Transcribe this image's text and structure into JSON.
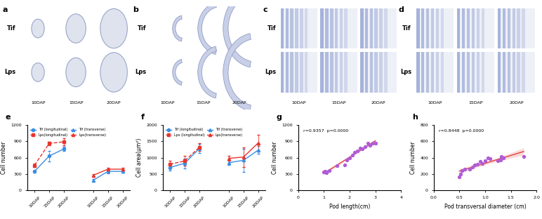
{
  "image_panels": [
    {
      "panel": "a",
      "rows": [
        "Tif",
        "Lps"
      ],
      "columns": [
        "10DAP",
        "15DAP",
        "20DAP"
      ]
    },
    {
      "panel": "b",
      "rows": [
        "Tif",
        "Lps"
      ],
      "columns": [
        "10DAP",
        "15DAP",
        "20DAP"
      ]
    },
    {
      "panel": "c",
      "rows": [
        "Tif",
        "Lps"
      ],
      "columns": [
        "10DAP",
        "15DAP",
        "20DAP"
      ]
    },
    {
      "panel": "d",
      "rows": [
        "Tif",
        "Lps"
      ],
      "columns": [
        "10DAP",
        "15DAP",
        "20DAP"
      ]
    }
  ],
  "chart_data": [
    {
      "panel": "e",
      "type": "line",
      "y_label": "Cell number",
      "categories": [
        "10DAP",
        "15DAP",
        "20DAP",
        null,
        "10DAP",
        "15DAP",
        "20DAP"
      ],
      "ylim": [
        0,
        1200
      ],
      "yticks": [
        0,
        300,
        600,
        900,
        1200
      ],
      "legend": "upper left",
      "series": [
        {
          "name": "Tif (longitudinal)",
          "color": "#3a8ee6",
          "marker": "circle",
          "line_style": "solid",
          "values": [
            350,
            630,
            760,
            null,
            null,
            null,
            null
          ],
          "errors": [
            20,
            100,
            40,
            null,
            null,
            null,
            null
          ]
        },
        {
          "name": "Lps(longitudinal)",
          "color": "#e8352e",
          "marker": "square",
          "line_style": "dashed",
          "values": [
            460,
            860,
            890,
            null,
            null,
            null,
            null
          ],
          "errors": [
            30,
            30,
            60,
            null,
            null,
            null,
            null
          ]
        },
        {
          "name": "Tif (transverse)",
          "color": "#3a8ee6",
          "marker": "triangle",
          "line_style": "solid",
          "values": [
            null,
            null,
            null,
            null,
            190,
            350,
            350
          ],
          "errors": [
            null,
            null,
            null,
            null,
            20,
            40,
            30
          ]
        },
        {
          "name": "Lps(transverse)",
          "color": "#e8352e",
          "marker": "triangle",
          "line_style": "solid",
          "values": [
            null,
            null,
            null,
            null,
            280,
            390,
            390
          ],
          "errors": [
            null,
            null,
            null,
            null,
            20,
            30,
            30
          ]
        }
      ]
    },
    {
      "panel": "f",
      "type": "line",
      "y_label": "Cell area(μm²)",
      "categories": [
        "10DAP",
        "15DAP",
        "20DAP",
        null,
        "10DAP",
        "15DAP",
        "20DAP"
      ],
      "ylim": [
        0,
        2000
      ],
      "yticks": [
        0,
        500,
        1000,
        1500,
        2000
      ],
      "legend": "upper left",
      "series": [
        {
          "name": "Tif (longitudinal)",
          "color": "#3a8ee6",
          "marker": "circle",
          "line_style": "solid",
          "values": [
            700,
            830,
            1280,
            null,
            null,
            null,
            null
          ],
          "errors": [
            100,
            150,
            130,
            null,
            null,
            null,
            null
          ]
        },
        {
          "name": "Lps (longitudinal)",
          "color": "#e8352e",
          "marker": "square",
          "line_style": "dashed",
          "values": [
            800,
            900,
            1320,
            null,
            null,
            null,
            null
          ],
          "errors": [
            100,
            150,
            120,
            null,
            null,
            null,
            null
          ]
        },
        {
          "name": "Tif (transverse)",
          "color": "#3a8ee6",
          "marker": "triangle",
          "line_style": "solid",
          "values": [
            null,
            null,
            null,
            null,
            850,
            920,
            1230
          ],
          "errors": [
            null,
            null,
            null,
            null,
            80,
            350,
            120
          ]
        },
        {
          "name": "Lps(transverse)",
          "color": "#e8352e",
          "marker": "triangle",
          "line_style": "solid",
          "values": [
            null,
            null,
            null,
            null,
            980,
            1020,
            1450
          ],
          "errors": [
            null,
            null,
            null,
            null,
            80,
            300,
            250
          ]
        }
      ]
    },
    {
      "panel": "g",
      "type": "scatter",
      "x_label": "Pod length(cm)",
      "y_label": "Cell number",
      "annotation": "r=0.9357  p=0.0000",
      "color": "#b05cd6",
      "xlim": [
        0,
        4
      ],
      "xticks": [
        0,
        1,
        2,
        3,
        4
      ],
      "ylim": [
        0,
        1200
      ],
      "yticks": [
        0,
        300,
        600,
        900,
        1200
      ],
      "x": [
        1.0,
        1.05,
        1.1,
        1.2,
        1.5,
        1.8,
        1.9,
        2.0,
        2.1,
        2.2,
        2.3,
        2.4,
        2.5,
        2.6,
        2.7,
        2.8,
        2.9,
        3.0
      ],
      "values": [
        340,
        350,
        330,
        360,
        450,
        470,
        560,
        600,
        650,
        700,
        720,
        780,
        760,
        800,
        860,
        830,
        870,
        860
      ]
    },
    {
      "panel": "h",
      "type": "scatter",
      "x_label": "Pod transversal diameter (cm)",
      "y_label": "Cell number",
      "annotation": "r=0.8448  p=0.0000",
      "color": "#b05cd6",
      "xlim": [
        0,
        2.0
      ],
      "xticks": [
        {
          "value": 0,
          "label": "0.0"
        },
        {
          "value": 0.5,
          "label": "0.5"
        },
        {
          "value": 1.0,
          "label": "1.0"
        },
        {
          "value": 1.5,
          "label": "1.5"
        },
        {
          "value": 2.0,
          "label": "2.0"
        }
      ],
      "ylim": [
        0,
        800
      ],
      "yticks": [
        0,
        200,
        400,
        600,
        800
      ],
      "x": [
        0.5,
        0.52,
        0.55,
        0.6,
        0.7,
        0.75,
        0.8,
        0.85,
        0.9,
        0.95,
        1.0,
        1.05,
        1.1,
        1.25,
        1.3,
        1.32,
        1.35,
        1.75
      ],
      "values": [
        170,
        200,
        240,
        260,
        260,
        290,
        310,
        320,
        350,
        330,
        360,
        400,
        390,
        360,
        370,
        410,
        400,
        410
      ]
    }
  ]
}
